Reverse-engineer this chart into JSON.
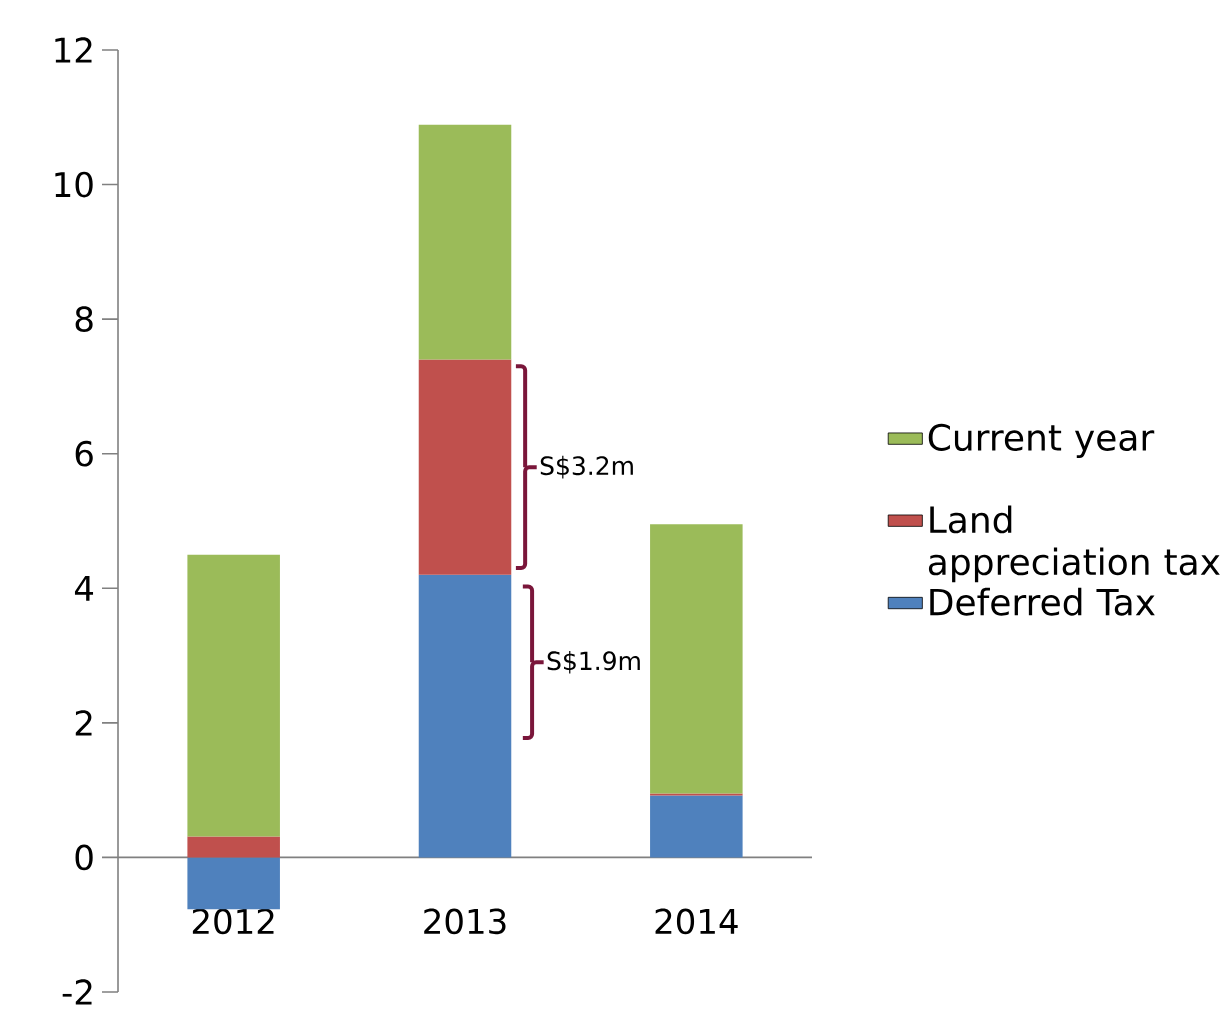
{
  "chart_data": {
    "type": "bar",
    "stacked": true,
    "legend": "right",
    "grid": false,
    "categories": [
      "2012",
      "2013",
      "2014"
    ],
    "series": [
      {
        "name": "Deferred Tax",
        "color": "#4f81bd",
        "values": [
          -0.77,
          4.2,
          0.92
        ]
      },
      {
        "name": "Land appreciation tax",
        "color": "#c0504d",
        "values": [
          0.31,
          3.2,
          0.03
        ]
      },
      {
        "name": "Current year",
        "color": "#9bbb59",
        "values": [
          4.19,
          3.49,
          4.0
        ]
      }
    ],
    "ylim": [
      -2,
      12
    ],
    "yticks": [
      -2,
      0,
      2,
      4,
      6,
      8,
      10,
      12
    ],
    "annotations": [
      "S$3.2m",
      "S$1.9m"
    ]
  }
}
